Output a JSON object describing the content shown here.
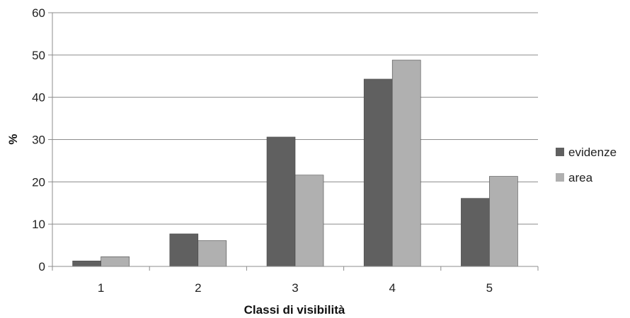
{
  "chart_data": {
    "type": "bar",
    "title": "",
    "xlabel": "Classi di visibilità",
    "ylabel": "%",
    "categories": [
      "1",
      "2",
      "3",
      "4",
      "5"
    ],
    "series": [
      {
        "name": "evidenze",
        "color": "#606060",
        "values": [
          1.3,
          7.7,
          30.6,
          44.3,
          16.1
        ]
      },
      {
        "name": "area",
        "color": "#b0b0b0",
        "values": [
          2.3,
          6.1,
          21.6,
          48.8,
          21.3
        ]
      }
    ],
    "ylim": [
      0,
      60
    ],
    "yticks": [
      0,
      10,
      20,
      30,
      40,
      50,
      60
    ],
    "grid": true,
    "legend_position": "right"
  }
}
